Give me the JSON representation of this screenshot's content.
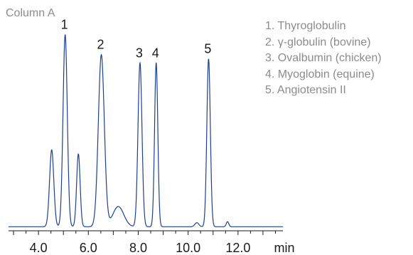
{
  "chart_data": {
    "type": "line",
    "title": "Column A",
    "xlabel": "min",
    "ylabel": "",
    "xlim": [
      2.8,
      13.8
    ],
    "ylim": [
      0,
      1
    ],
    "grid": false,
    "x_ticks": [
      4.0,
      6.0,
      8.0,
      10.0,
      12.0
    ],
    "x_tick_labels": [
      "4.0",
      "6.0",
      "8.0",
      "10.0",
      "12.0"
    ],
    "baseline": 0.02,
    "series": [
      {
        "color": "#1f3f8f",
        "peaks": [
          {
            "rt": 4.53,
            "height": 0.38,
            "width": 0.085
          },
          {
            "rt": 5.07,
            "height": 0.95,
            "width": 0.085
          },
          {
            "rt": 5.6,
            "height": 0.36,
            "width": 0.07
          },
          {
            "rt": 6.52,
            "height": 0.85,
            "width": 0.12
          },
          {
            "rt": 7.2,
            "height": 0.1,
            "width": 0.22
          },
          {
            "rt": 8.07,
            "height": 0.81,
            "width": 0.08
          },
          {
            "rt": 8.72,
            "height": 0.81,
            "width": 0.065
          },
          {
            "rt": 10.35,
            "height": 0.02,
            "width": 0.08
          },
          {
            "rt": 10.82,
            "height": 0.83,
            "width": 0.07
          },
          {
            "rt": 11.58,
            "height": 0.025,
            "width": 0.05
          }
        ]
      }
    ],
    "peak_labels": [
      {
        "text": "1",
        "rt": 5.07
      },
      {
        "text": "2",
        "rt": 6.52
      },
      {
        "text": "3",
        "rt": 8.07
      },
      {
        "text": "4",
        "rt": 8.72
      },
      {
        "text": "5",
        "rt": 10.82
      }
    ],
    "legend": {
      "placement": "top-right",
      "entries": [
        "1. Thyroglobulin",
        "2. γ-globulin (bovine)",
        "3. Ovalbumin (chicken)",
        "4. Myoglobin (equine)",
        "5. Angiotensin II"
      ]
    }
  }
}
